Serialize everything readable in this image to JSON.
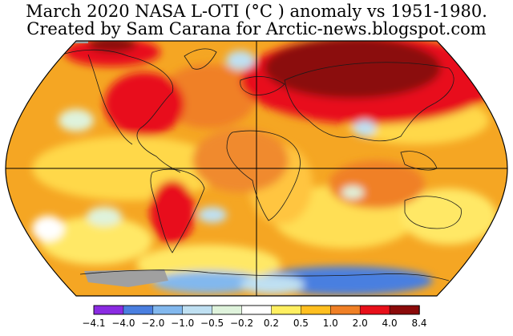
{
  "title_line1": "March 2020 NASA L-OTI (°C ) anomaly vs 1951-1980.",
  "title_line2": "Created by Sam Carana for Arctic-news.blogspot.com",
  "legend": {
    "ticks": [
      "−4.1",
      "−4.0",
      "−2.0",
      "−1.0",
      "−0.5",
      "−0.2",
      "0.2",
      "0.5",
      "1.0",
      "2.0",
      "4.0",
      "8.4"
    ],
    "colors": [
      "#8a2be2",
      "#4a7fe0",
      "#82b8ee",
      "#bfe0f2",
      "#dff3dc",
      "#ffffff",
      "#ffef61",
      "#ffbf20",
      "#f08026",
      "#e8101a",
      "#8b0a0a"
    ]
  },
  "map": {
    "projection": "Robinson",
    "missing_data_color": "#a0a0a0"
  }
}
